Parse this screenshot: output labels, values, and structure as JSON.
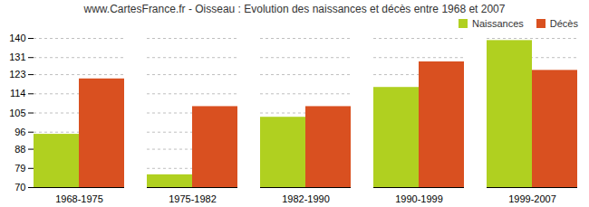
{
  "chart_data": {
    "type": "bar",
    "title": "www.CartesFrance.fr - Oisseau : Evolution des naissances et décès entre 1968 et 2007",
    "categories": [
      "1968-1975",
      "1975-1982",
      "1982-1990",
      "1990-1999",
      "1999-2007"
    ],
    "series": [
      {
        "name": "Naissances",
        "color": "#b0d020",
        "values": [
          95,
          76,
          103,
          117,
          139
        ]
      },
      {
        "name": "Décès",
        "color": "#d95020",
        "values": [
          121,
          108,
          108,
          129,
          125
        ]
      }
    ],
    "ylim": [
      70,
      140
    ],
    "yticks": [
      70,
      79,
      88,
      96,
      105,
      114,
      123,
      131,
      140
    ],
    "grid": true,
    "legend": "upper right"
  }
}
